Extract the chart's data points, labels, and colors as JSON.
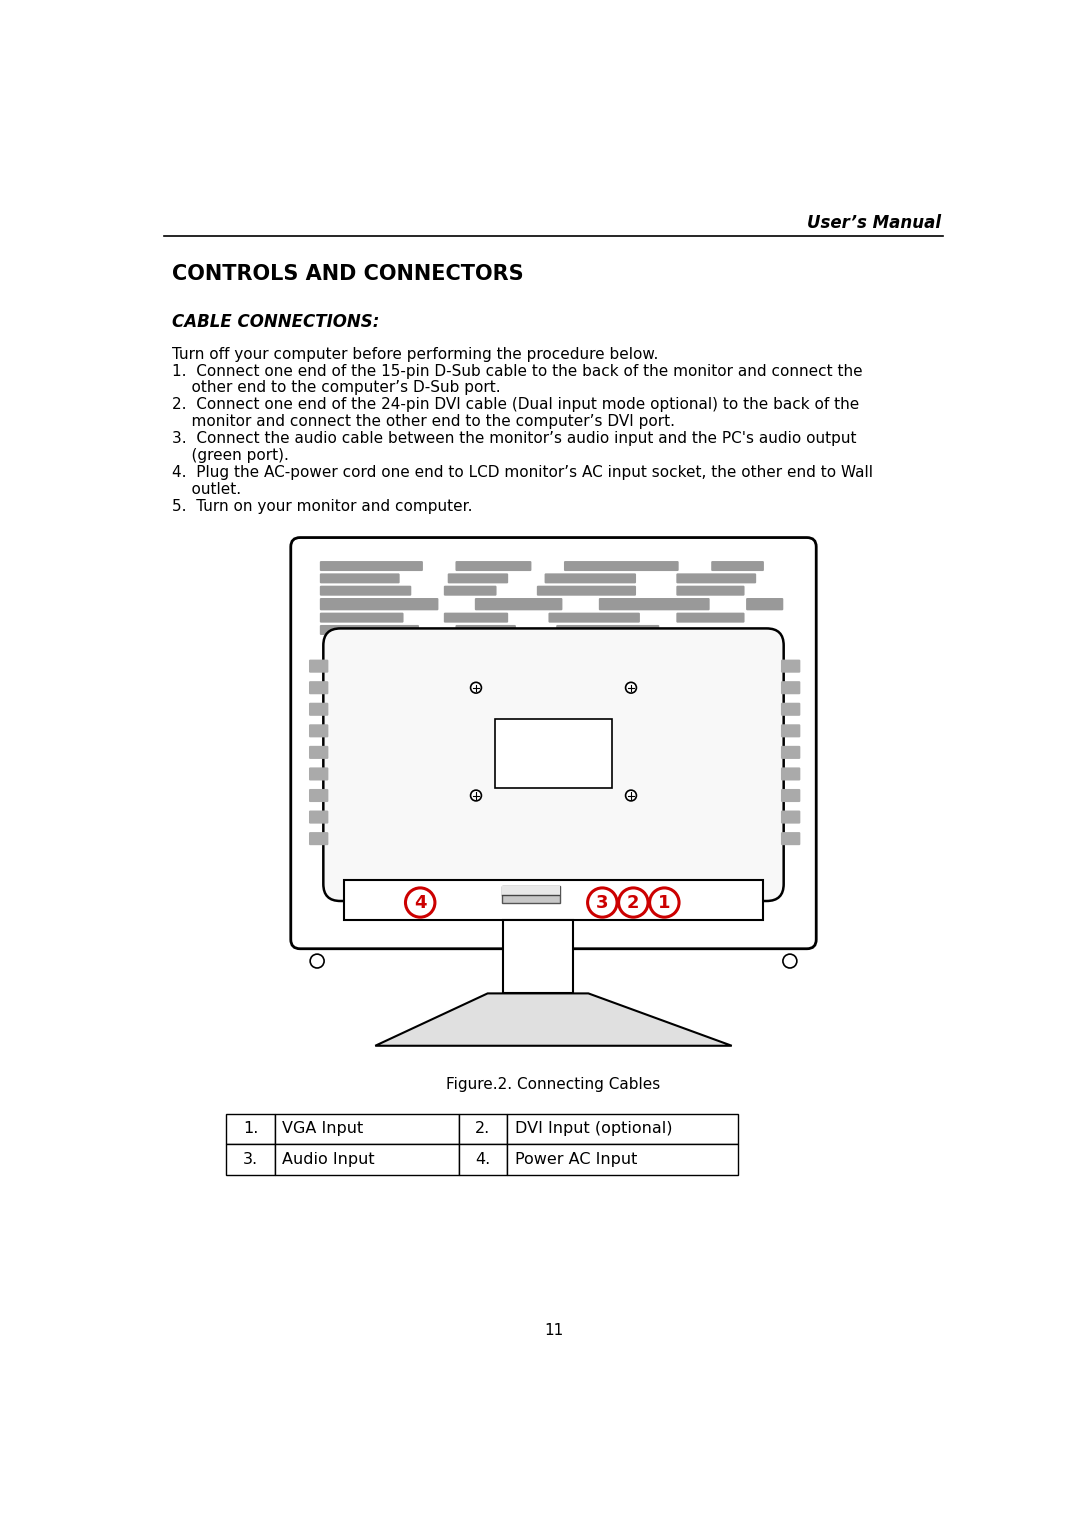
{
  "page_title": "User’s Manual",
  "section_title": "CONTROLS AND CONNECTORS",
  "subsection_title": "CABLE CONNECTIONS:",
  "line0": "Turn off your computer before performing the procedure below.",
  "line1a": "1.  Connect one end of the 15-pin D-Sub cable to the back of the monitor and connect the",
  "line1b": "    other end to the computer’s D-Sub port.",
  "line2a": "2.  Connect one end of the 24-pin DVI cable (Dual input mode optional) to the back of the",
  "line2b": "    monitor and connect the other end to the computer’s DVI port.",
  "line3a": "3.  Connect the audio cable between the monitor’s audio input and the PC's audio output",
  "line3b": "    (green port).",
  "line4a": "4.  Plug the AC-power cord one end to LCD monitor’s AC input socket, the other end to Wall",
  "line4b": "    outlet.",
  "line5": "5.  Turn on your monitor and computer.",
  "figure_caption": "Figure.2. Connecting Cables",
  "table": [
    [
      "1.",
      "VGA Input",
      "2.",
      "DVI Input (optional)"
    ],
    [
      "3.",
      "Audio Input",
      "4.",
      "Power AC Input"
    ]
  ],
  "page_number": "11",
  "bg_color": "#ffffff",
  "text_color": "#000000",
  "bar_color": "#999999",
  "side_slot_color": "#aaaaaa",
  "panel_color": "#f8f8f8",
  "red_color": "#cc0000",
  "stand_base_color": "#e0e0e0",
  "connector_color": "#d0d0d0"
}
